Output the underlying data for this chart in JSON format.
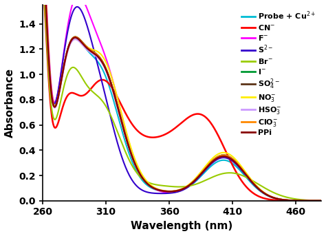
{
  "xlabel": "Wavelength (nm)",
  "ylabel": "Absorbance",
  "xlim": [
    260,
    480
  ],
  "ylim": [
    0,
    1.55
  ],
  "xticks": [
    260,
    310,
    360,
    410,
    460
  ],
  "yticks": [
    0,
    0.2,
    0.4,
    0.6,
    0.8,
    1.0,
    1.2,
    1.4
  ],
  "series": [
    {
      "label": "Probe + Cu$^{2+}$",
      "color": "#00bcd4",
      "lw": 1.5
    },
    {
      "label": "CN$^{-}$",
      "color": "#ff0000",
      "lw": 1.8
    },
    {
      "label": "F$^{-}$",
      "color": "#ff00ff",
      "lw": 1.5
    },
    {
      "label": "S$^{2-}$",
      "color": "#3300cc",
      "lw": 1.5
    },
    {
      "label": "Br$^{-}$",
      "color": "#99cc00",
      "lw": 1.5
    },
    {
      "label": "I$^{-}$",
      "color": "#009933",
      "lw": 1.5
    },
    {
      "label": "SO$_4^{2-}$",
      "color": "#5c3317",
      "lw": 1.5
    },
    {
      "label": "NO$_3^{-}$",
      "color": "#ffee00",
      "lw": 1.5
    },
    {
      "label": "HSO$_3^{-}$",
      "color": "#cc99ff",
      "lw": 1.5
    },
    {
      "label": "ClO$_3^{-}$",
      "color": "#ff8800",
      "lw": 1.5
    },
    {
      "label": "PPi",
      "color": "#880000",
      "lw": 1.8
    }
  ],
  "legend_fontsize": 8,
  "axis_fontsize": 11,
  "tick_fontsize": 10
}
